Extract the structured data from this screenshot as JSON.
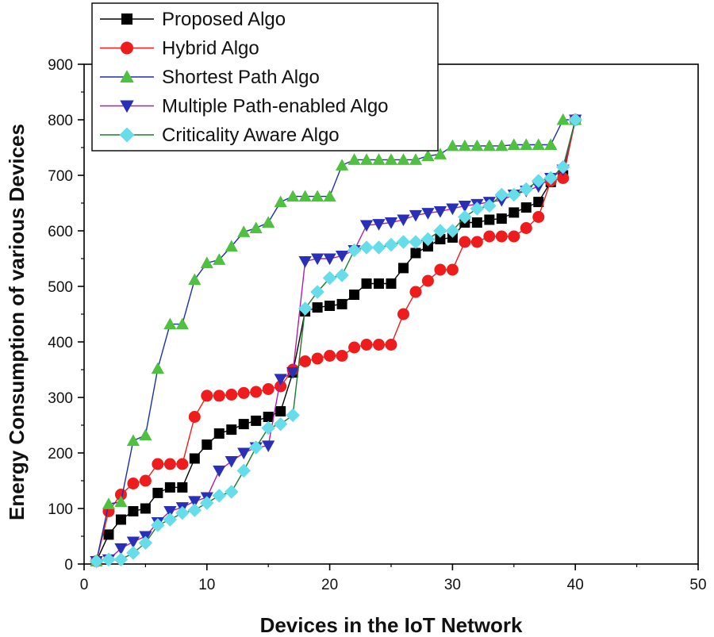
{
  "chart_data": {
    "type": "line",
    "title": "",
    "xlabel": "Devices in the IoT Network",
    "ylabel": "Energy Consumption of various Devices",
    "xlim": [
      0,
      50
    ],
    "ylim": [
      0,
      900
    ],
    "xticks": [
      0,
      10,
      20,
      30,
      40,
      50
    ],
    "yticks": [
      0,
      100,
      200,
      300,
      400,
      500,
      600,
      700,
      800,
      900
    ],
    "legend_position": "top-left",
    "series": [
      {
        "name": "Proposed Algo",
        "color": "#000000",
        "marker": "square",
        "x": [
          1,
          2,
          3,
          4,
          5,
          6,
          7,
          8,
          9,
          10,
          11,
          12,
          13,
          14,
          15,
          16,
          17,
          18,
          19,
          20,
          21,
          22,
          23,
          24,
          25,
          26,
          27,
          28,
          29,
          30,
          31,
          32,
          33,
          34,
          35,
          36,
          37,
          38,
          39,
          40
        ],
        "y": [
          5,
          53,
          80,
          95,
          100,
          128,
          138,
          138,
          190,
          215,
          235,
          242,
          252,
          258,
          265,
          275,
          345,
          455,
          462,
          465,
          468,
          485,
          505,
          505,
          505,
          533,
          560,
          572,
          585,
          588,
          615,
          615,
          620,
          622,
          633,
          642,
          652,
          688,
          700,
          800
        ]
      },
      {
        "name": "Hybrid Algo",
        "color": "#ee1c1c",
        "marker": "circle",
        "x": [
          1,
          2,
          3,
          4,
          5,
          6,
          7,
          8,
          9,
          10,
          11,
          12,
          13,
          14,
          15,
          16,
          17,
          18,
          19,
          20,
          21,
          22,
          23,
          24,
          25,
          26,
          27,
          28,
          29,
          30,
          31,
          32,
          33,
          34,
          35,
          36,
          37,
          38,
          39,
          40
        ],
        "y": [
          5,
          95,
          125,
          145,
          150,
          180,
          180,
          180,
          265,
          303,
          303,
          305,
          308,
          310,
          315,
          320,
          350,
          365,
          370,
          375,
          375,
          390,
          395,
          395,
          395,
          450,
          490,
          510,
          530,
          530,
          580,
          580,
          590,
          590,
          590,
          605,
          625,
          690,
          695,
          800
        ]
      },
      {
        "name": "Shortest Path Algo",
        "color": "#1a2fb0",
        "marker": "triangle-up",
        "marker_color": "#4fc03f",
        "x": [
          1,
          2,
          3,
          4,
          5,
          6,
          7,
          8,
          9,
          10,
          11,
          12,
          13,
          14,
          15,
          16,
          17,
          18,
          19,
          20,
          21,
          22,
          23,
          24,
          25,
          26,
          27,
          28,
          29,
          30,
          31,
          32,
          33,
          34,
          35,
          36,
          37,
          38,
          39,
          40
        ],
        "y": [
          5,
          108,
          112,
          222,
          232,
          352,
          432,
          432,
          512,
          542,
          548,
          572,
          598,
          605,
          615,
          652,
          662,
          662,
          662,
          662,
          718,
          728,
          728,
          728,
          728,
          728,
          728,
          735,
          738,
          753,
          753,
          753,
          753,
          753,
          755,
          755,
          755,
          755,
          800,
          800
        ]
      },
      {
        "name": "Multiple Path-enabled Algo",
        "color": "#b01fa8",
        "marker": "triangle-down",
        "marker_color": "#2a2fb8",
        "x": [
          1,
          2,
          3,
          4,
          5,
          6,
          7,
          8,
          9,
          10,
          11,
          12,
          13,
          14,
          15,
          16,
          17,
          18,
          19,
          20,
          21,
          22,
          23,
          24,
          25,
          26,
          27,
          28,
          29,
          30,
          31,
          32,
          33,
          34,
          35,
          36,
          37,
          38,
          39,
          40
        ],
        "y": [
          5,
          8,
          28,
          40,
          50,
          75,
          95,
          102,
          113,
          120,
          168,
          185,
          200,
          210,
          213,
          333,
          345,
          545,
          550,
          550,
          555,
          565,
          610,
          612,
          615,
          620,
          628,
          632,
          635,
          640,
          645,
          648,
          652,
          655,
          665,
          672,
          680,
          695,
          710,
          800
        ]
      },
      {
        "name": "Criticality Aware Algo",
        "color": "#1f7a2a",
        "marker": "diamond",
        "marker_color": "#66dde8",
        "x": [
          1,
          2,
          3,
          4,
          5,
          6,
          7,
          8,
          9,
          10,
          11,
          12,
          13,
          14,
          15,
          16,
          17,
          18,
          19,
          20,
          21,
          22,
          23,
          24,
          25,
          26,
          27,
          28,
          29,
          30,
          31,
          32,
          33,
          34,
          35,
          36,
          37,
          38,
          39,
          40
        ],
        "y": [
          5,
          8,
          8,
          20,
          38,
          70,
          80,
          92,
          97,
          110,
          123,
          130,
          168,
          210,
          245,
          252,
          268,
          460,
          490,
          515,
          520,
          565,
          570,
          570,
          575,
          580,
          580,
          585,
          600,
          600,
          625,
          640,
          645,
          665,
          665,
          675,
          690,
          695,
          715,
          800
        ]
      }
    ]
  }
}
